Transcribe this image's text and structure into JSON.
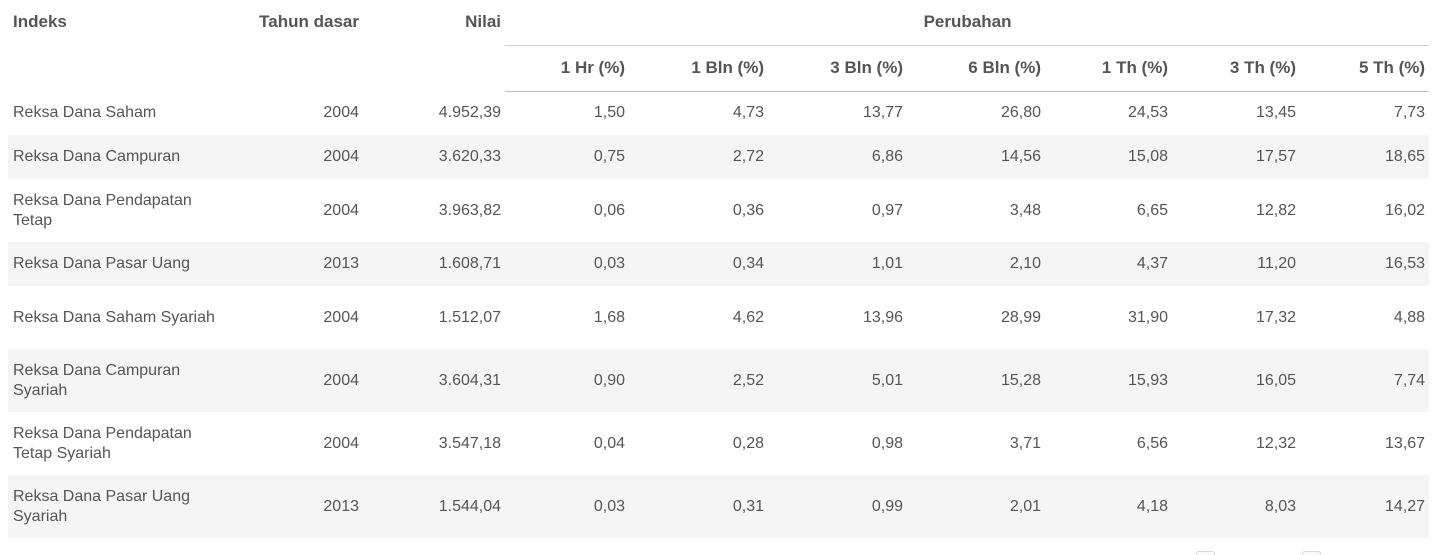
{
  "table": {
    "headers": {
      "indeks": "Indeks",
      "tahun_dasar": "Tahun dasar",
      "nilai": "Nilai",
      "perubahan": "Perubahan",
      "sub": [
        "1 Hr (%)",
        "1 Bln (%)",
        "3 Bln (%)",
        "6 Bln (%)",
        "1 Th (%)",
        "3 Th (%)",
        "5 Th (%)"
      ]
    },
    "rows": [
      {
        "name": "Reksa Dana Saham",
        "year": "2004",
        "value": "4.952,39",
        "changes": [
          "1,50",
          "4,73",
          "13,77",
          "26,80",
          "24,53",
          "13,45",
          "7,73"
        ]
      },
      {
        "name": "Reksa Dana Campuran",
        "year": "2004",
        "value": "3.620,33",
        "changes": [
          "0,75",
          "2,72",
          "6,86",
          "14,56",
          "15,08",
          "17,57",
          "18,65"
        ]
      },
      {
        "name": "Reksa Dana Pendapatan Tetap",
        "year": "2004",
        "value": "3.963,82",
        "changes": [
          "0,06",
          "0,36",
          "0,97",
          "3,48",
          "6,65",
          "12,82",
          "16,02"
        ]
      },
      {
        "name": "Reksa Dana Pasar Uang",
        "year": "2013",
        "value": "1.608,71",
        "changes": [
          "0,03",
          "0,34",
          "1,01",
          "2,10",
          "4,37",
          "11,20",
          "16,53"
        ]
      },
      {
        "name": "Reksa Dana Saham Syariah",
        "year": "2004",
        "value": "1.512,07",
        "changes": [
          "1,68",
          "4,62",
          "13,96",
          "28,99",
          "31,90",
          "17,32",
          "4,88"
        ]
      },
      {
        "name": "Reksa Dana Campuran Syariah",
        "year": "2004",
        "value": "3.604,31",
        "changes": [
          "0,90",
          "2,52",
          "5,01",
          "15,28",
          "15,93",
          "16,05",
          "7,74"
        ]
      },
      {
        "name": "Reksa Dana Pendapatan Tetap Syariah",
        "year": "2004",
        "value": "3.547,18",
        "changes": [
          "0,04",
          "0,28",
          "0,98",
          "3,71",
          "6,56",
          "12,32",
          "13,67"
        ]
      },
      {
        "name": "Reksa Dana Pasar Uang Syariah",
        "year": "2013",
        "value": "1.544,04",
        "changes": [
          "0,03",
          "0,31",
          "0,99",
          "2,01",
          "4,18",
          "8,03",
          "14,27"
        ]
      }
    ]
  }
}
